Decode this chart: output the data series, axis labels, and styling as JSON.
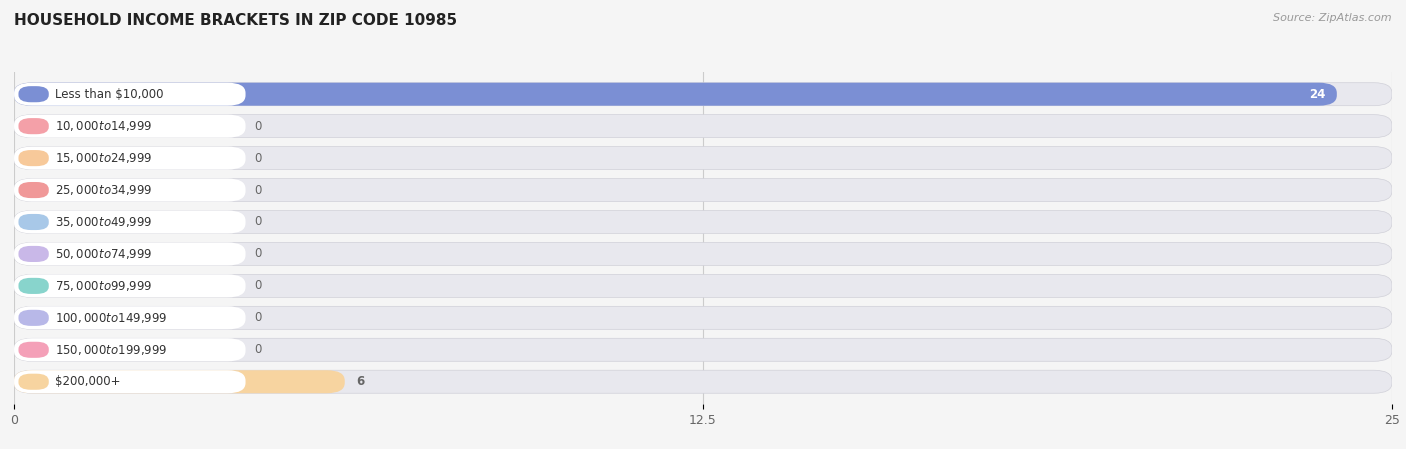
{
  "title": "HOUSEHOLD INCOME BRACKETS IN ZIP CODE 10985",
  "source": "Source: ZipAtlas.com",
  "categories": [
    "Less than $10,000",
    "$10,000 to $14,999",
    "$15,000 to $24,999",
    "$25,000 to $34,999",
    "$35,000 to $49,999",
    "$50,000 to $74,999",
    "$75,000 to $99,999",
    "$100,000 to $149,999",
    "$150,000 to $199,999",
    "$200,000+"
  ],
  "values": [
    24,
    0,
    0,
    0,
    0,
    0,
    0,
    0,
    0,
    6
  ],
  "bar_colors": [
    "#7b8fd4",
    "#f4a0a8",
    "#f7c99a",
    "#f09898",
    "#a8c8e8",
    "#c9b8e8",
    "#88d4cc",
    "#b8b8e8",
    "#f4a0b8",
    "#f7d4a0"
  ],
  "background_color": "#f5f5f5",
  "bar_bg_color": "#e8e8ee",
  "label_bg_color": "#ffffff",
  "xlim": [
    0,
    25
  ],
  "xticks": [
    0,
    12.5,
    25
  ],
  "title_fontsize": 11,
  "label_fontsize": 8.5,
  "value_fontsize": 8.5,
  "source_fontsize": 8
}
